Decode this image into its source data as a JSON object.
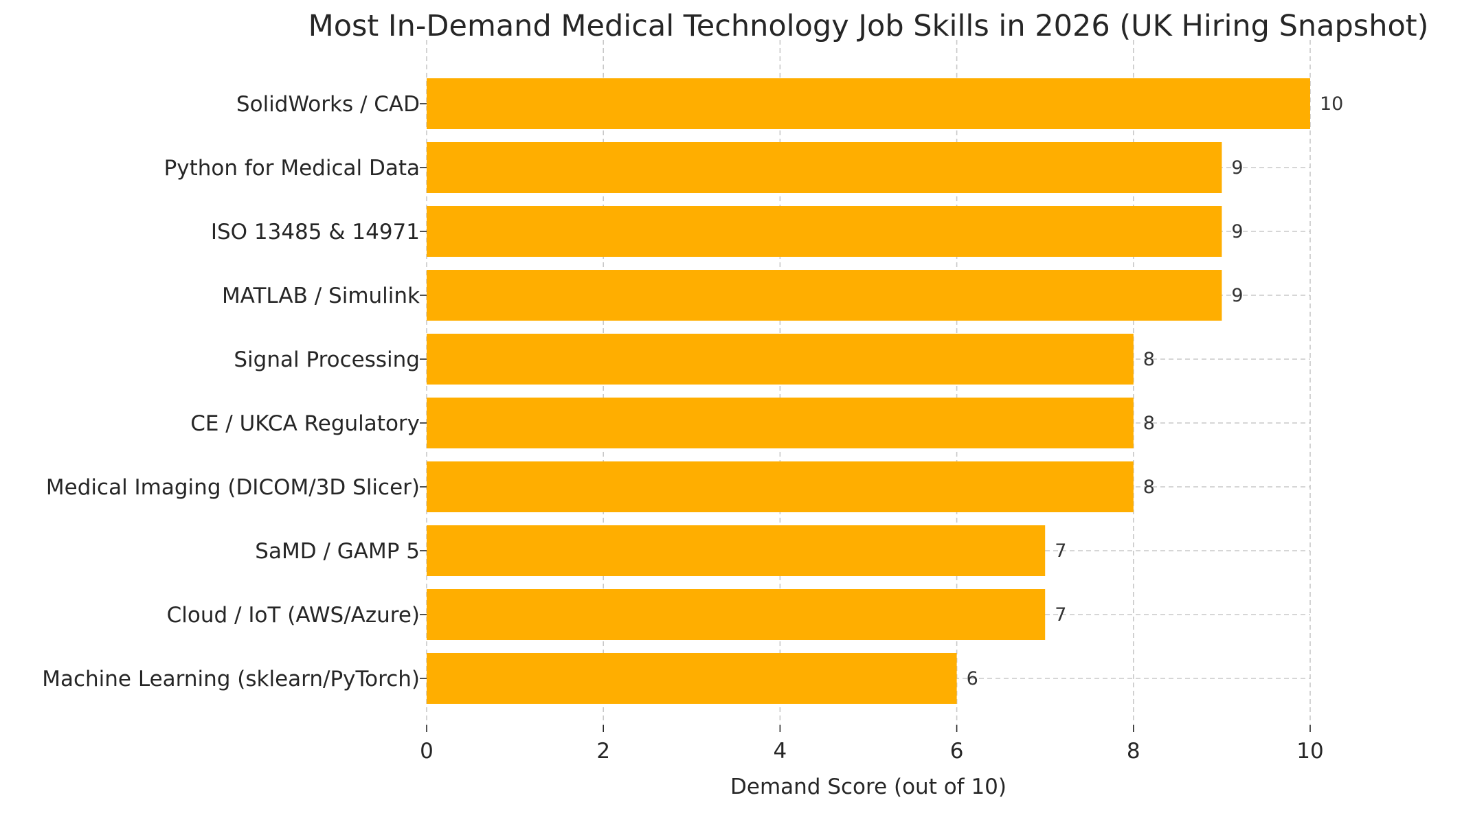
{
  "chart_data": {
    "type": "bar",
    "orientation": "horizontal",
    "title": "Most In-Demand Medical Technology Job Skills in 2026 (UK Hiring Snapshot)",
    "xlabel": "Demand Score (out of 10)",
    "ylabel": "",
    "xlim": [
      0,
      10
    ],
    "xticks": [
      0,
      2,
      4,
      6,
      8,
      10
    ],
    "grid": "dashed, both axes",
    "bar_color": "#FFAE00",
    "data_labels": true,
    "categories": [
      "SolidWorks / CAD",
      "Python for Medical Data",
      "ISO 13485 & 14971",
      "MATLAB / Simulink",
      "Signal Processing",
      "CE / UKCA Regulatory",
      "Medical Imaging (DICOM/3D Slicer)",
      "SaMD / GAMP 5",
      "Cloud / IoT (AWS/Azure)",
      "Machine Learning (sklearn/PyTorch)"
    ],
    "values": [
      10,
      9,
      9,
      9,
      8,
      8,
      8,
      7,
      7,
      6
    ]
  }
}
